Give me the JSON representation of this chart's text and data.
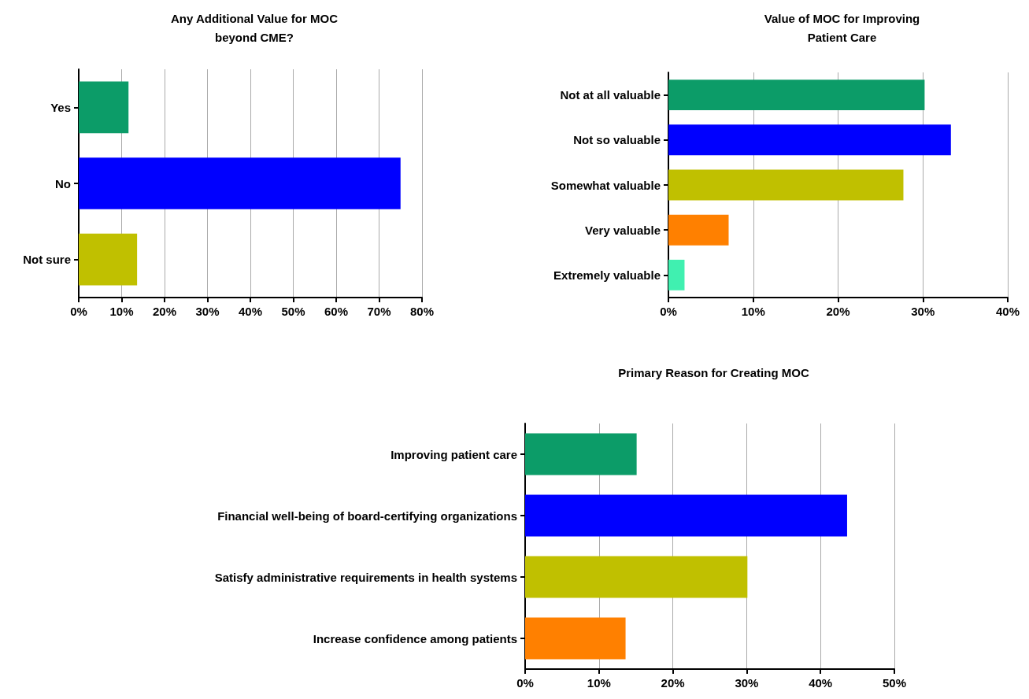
{
  "chart_data": [
    {
      "type": "bar",
      "orientation": "horizontal",
      "title": "Any Additional Value for MOC\nbeyond CME?",
      "categories": [
        "Yes",
        "No",
        "Not sure"
      ],
      "values": [
        11.6,
        75,
        13.6
      ],
      "colors": [
        "#0c9c68",
        "#0000ff",
        "#c0c000"
      ],
      "xlim": [
        0,
        80
      ],
      "xticks": [
        {
          "value": 0,
          "label": "0%"
        },
        {
          "value": 10,
          "label": "10%"
        },
        {
          "value": 20,
          "label": "20%"
        },
        {
          "value": 30,
          "label": "30%"
        },
        {
          "value": 40,
          "label": "40%"
        },
        {
          "value": 50,
          "label": "50%"
        },
        {
          "value": 60,
          "label": "60%"
        },
        {
          "value": 70,
          "label": "70%"
        },
        {
          "value": 80,
          "label": "80%"
        }
      ],
      "grid": "x"
    },
    {
      "type": "bar",
      "orientation": "horizontal",
      "title": "Value of MOC for Improving\nPatient Care",
      "categories": [
        "Not at all valuable",
        "Not so valuable",
        "Somewhat valuable",
        "Very valuable",
        "Extremely valuable"
      ],
      "values": [
        30.2,
        33.3,
        27.7,
        7.1,
        1.9
      ],
      "colors": [
        "#0c9c68",
        "#0000ff",
        "#c0c000",
        "#ff8000",
        "#40f0b0"
      ],
      "xlim": [
        0,
        40
      ],
      "xticks": [
        {
          "value": 0,
          "label": "0%"
        },
        {
          "value": 10,
          "label": "10%"
        },
        {
          "value": 20,
          "label": "20%"
        },
        {
          "value": 30,
          "label": "30%"
        },
        {
          "value": 40,
          "label": "40%"
        }
      ],
      "grid": "x"
    },
    {
      "type": "bar",
      "orientation": "horizontal",
      "title": "Primary Reason for Creating MOC",
      "categories": [
        "Improving patient care",
        "Financial well-being of board-certifying organizations",
        "Satisfy administrative requirements in health systems",
        "Increase confidence among patients"
      ],
      "values": [
        15.1,
        43.6,
        30.1,
        13.6
      ],
      "colors": [
        "#0c9c68",
        "#0000ff",
        "#c0c000",
        "#ff8000"
      ],
      "xlim": [
        0,
        50
      ],
      "xticks": [
        {
          "value": 0,
          "label": "0%"
        },
        {
          "value": 10,
          "label": "10%"
        },
        {
          "value": 20,
          "label": "20%"
        },
        {
          "value": 30,
          "label": "30%"
        },
        {
          "value": 40,
          "label": "40%"
        },
        {
          "value": 50,
          "label": "50%"
        }
      ],
      "grid": "x"
    }
  ]
}
